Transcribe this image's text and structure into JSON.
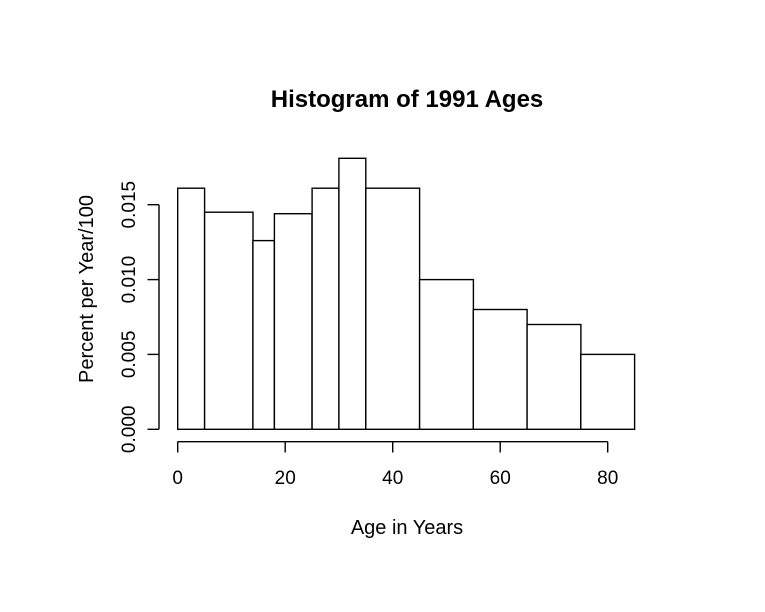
{
  "chart_data": {
    "type": "histogram",
    "title": "Histogram of 1991 Ages",
    "xlabel": "Age in Years",
    "ylabel": "Percent per Year/100",
    "bin_edges": [
      0,
      5,
      14,
      18,
      25,
      30,
      35,
      45,
      55,
      65,
      75,
      85
    ],
    "densities": [
      0.0161,
      0.0145,
      0.0126,
      0.0144,
      0.0161,
      0.0181,
      0.0161,
      0.01,
      0.008,
      0.007,
      0.005
    ],
    "x_tick_values": [
      0,
      20,
      40,
      60,
      80
    ],
    "x_tick_labels": [
      "0",
      "20",
      "40",
      "60",
      "80"
    ],
    "y_tick_values": [
      0.0,
      0.005,
      0.01,
      0.015
    ],
    "y_tick_labels": [
      "0.000",
      "0.005",
      "0.010",
      "0.015"
    ],
    "xlim": [
      0,
      85
    ],
    "ylim": [
      0,
      0.0185
    ],
    "grid": false,
    "legend_position": "none",
    "bar_fill_color": "#ffffff",
    "line_color": "#000000",
    "background_color": "#ffffff"
  }
}
